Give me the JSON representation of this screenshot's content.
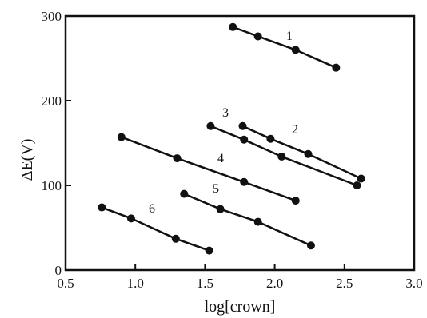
{
  "chart_data": {
    "type": "line",
    "title": "",
    "xlabel": "log[crown]",
    "ylabel": "ΔE(V)",
    "xlim": [
      0.5,
      3.0
    ],
    "ylim": [
      0,
      300
    ],
    "x_ticks": [
      "0.5",
      "1.0",
      "1.5",
      "2.0",
      "2.5",
      "3.0"
    ],
    "y_ticks": [
      "0",
      "100",
      "200",
      "300"
    ],
    "x_tick_values": [
      0.5,
      1.0,
      1.5,
      2.0,
      2.5,
      3.0
    ],
    "y_tick_values": [
      0,
      100,
      200,
      300
    ],
    "grid": false,
    "legend": "inline labels",
    "series": [
      {
        "name": "1",
        "x": [
          1.7,
          1.88,
          2.15,
          2.44
        ],
        "y": [
          287,
          276,
          260,
          239
        ]
      },
      {
        "name": "2",
        "x": [
          1.77,
          1.97,
          2.24,
          2.62
        ],
        "y": [
          170,
          155,
          137,
          108
        ]
      },
      {
        "name": "3",
        "x": [
          1.54,
          1.78,
          2.05,
          2.59
        ],
        "y": [
          170,
          154,
          134,
          100
        ]
      },
      {
        "name": "4",
        "x": [
          0.9,
          1.3,
          1.78,
          2.15
        ],
        "y": [
          157,
          132,
          104,
          82
        ]
      },
      {
        "name": "5",
        "x": [
          1.35,
          1.61,
          1.88,
          2.26
        ],
        "y": [
          90,
          72,
          57,
          29
        ]
      },
      {
        "name": "6",
        "x": [
          0.76,
          0.97,
          1.29,
          1.53
        ],
        "y": [
          74,
          61,
          37,
          23
        ]
      }
    ]
  }
}
